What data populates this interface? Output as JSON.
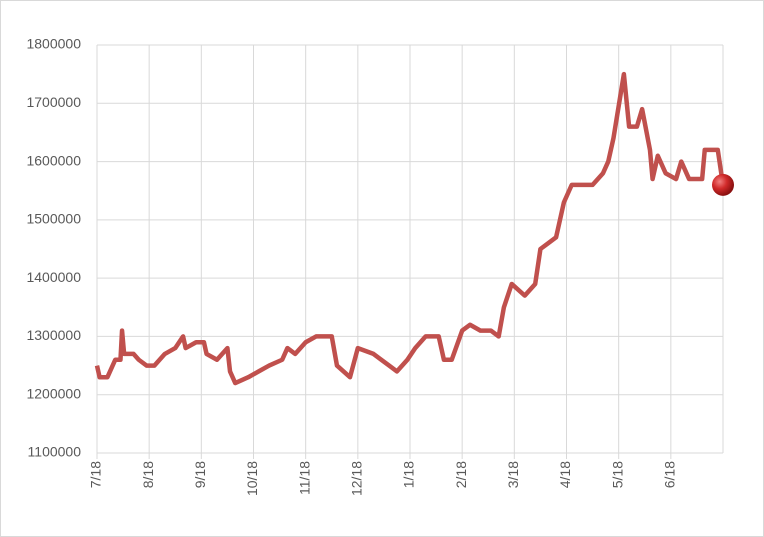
{
  "chart_data": {
    "type": "line",
    "x": [
      0,
      0.05,
      0.2,
      0.35,
      0.45,
      0.48,
      0.52,
      0.7,
      0.8,
      0.95,
      1.1,
      1.3,
      1.5,
      1.65,
      1.7,
      1.9,
      2.05,
      2.1,
      2.3,
      2.5,
      2.55,
      2.65,
      2.9,
      3.1,
      3.3,
      3.55,
      3.65,
      3.8,
      4.0,
      4.2,
      4.5,
      4.6,
      4.85,
      5.0,
      5.3,
      5.6,
      5.75,
      5.95,
      6.1,
      6.3,
      6.55,
      6.65,
      6.8,
      7.0,
      7.15,
      7.35,
      7.55,
      7.7,
      7.8,
      7.95,
      8.2,
      8.4,
      8.5,
      8.65,
      8.8,
      8.95,
      9.1,
      9.5,
      9.7,
      9.8,
      9.9,
      10.1,
      10.2,
      10.35,
      10.45,
      10.6,
      10.65,
      10.75,
      10.9,
      11.1,
      11.2,
      11.35,
      11.6,
      11.65,
      11.9,
      12.0
    ],
    "series": [
      {
        "color": "#c0504d",
        "values": [
          1250000,
          1230000,
          1230000,
          1260000,
          1260000,
          1310000,
          1270000,
          1270000,
          1260000,
          1250000,
          1250000,
          1270000,
          1280000,
          1300000,
          1280000,
          1290000,
          1290000,
          1270000,
          1260000,
          1280000,
          1240000,
          1220000,
          1230000,
          1240000,
          1250000,
          1260000,
          1280000,
          1270000,
          1290000,
          1300000,
          1300000,
          1250000,
          1230000,
          1280000,
          1270000,
          1250000,
          1240000,
          1260000,
          1280000,
          1300000,
          1300000,
          1260000,
          1260000,
          1310000,
          1320000,
          1310000,
          1310000,
          1300000,
          1350000,
          1390000,
          1370000,
          1390000,
          1450000,
          1460000,
          1470000,
          1530000,
          1560000,
          1560000,
          1580000,
          1600000,
          1640000,
          1750000,
          1660000,
          1660000,
          1690000,
          1620000,
          1570000,
          1610000,
          1580000,
          1570000,
          1600000,
          1570000,
          1570000,
          1620000,
          1620000,
          1560000
        ]
      }
    ],
    "xlim": [
      0,
      12
    ],
    "xticks": [
      {
        "value": 0,
        "label": "7/18"
      },
      {
        "value": 1,
        "label": "8/18"
      },
      {
        "value": 2,
        "label": "9/18"
      },
      {
        "value": 3,
        "label": "10/18"
      },
      {
        "value": 4,
        "label": "11/18"
      },
      {
        "value": 5,
        "label": "12/18"
      },
      {
        "value": 6,
        "label": "1/18"
      },
      {
        "value": 7,
        "label": "2/18"
      },
      {
        "value": 8,
        "label": "3/18"
      },
      {
        "value": 9,
        "label": "4/18"
      },
      {
        "value": 10,
        "label": "5/18"
      },
      {
        "value": 11,
        "label": "6/18"
      }
    ],
    "ylim": [
      1100000,
      1800000
    ],
    "yticks": [
      1100000,
      1200000,
      1300000,
      1400000,
      1500000,
      1600000,
      1700000,
      1800000
    ],
    "grid": true
  }
}
